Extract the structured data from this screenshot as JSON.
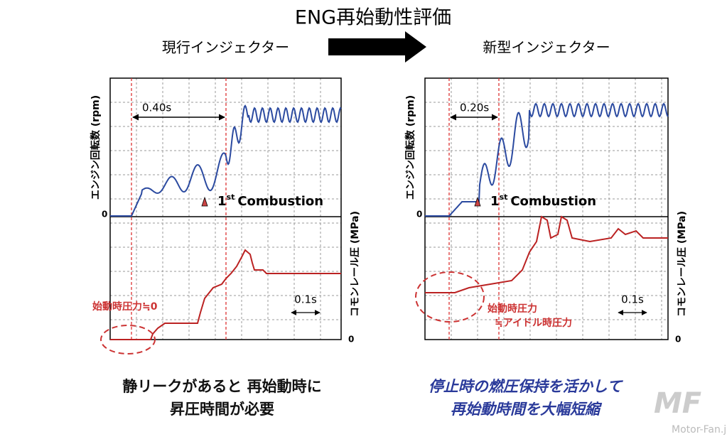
{
  "title": "ENG再始動性評価",
  "panels": [
    {
      "heading": "現行インジェクター",
      "rpm_axis_label": "エンジン回転数 (rpm)",
      "rpm_zero": "0",
      "pressure_axis_label": "コモンレール圧 (MPa)",
      "pressure_zero": "0",
      "delay": "0.40s",
      "combustion": {
        "number": "1",
        "suffix": "st",
        "word": "Combustion"
      },
      "scale": "0.1s",
      "note": [
        "始動時圧力≒0"
      ],
      "caption": [
        "静リークがあると 再始動時に",
        "昇圧時間が必要"
      ]
    },
    {
      "heading": "新型インジェクター",
      "rpm_axis_label": "エンジン回転数 (rpm)",
      "rpm_zero": "0",
      "pressure_axis_label": "コモンレール圧 (MPa)",
      "pressure_zero": "0",
      "delay": "0.20s",
      "combustion": {
        "number": "1",
        "suffix": "st",
        "word": "Combustion"
      },
      "scale": "0.1s",
      "note": [
        "始動時圧力",
        "≒アイドル時圧力"
      ],
      "caption": [
        "停止時の燃圧保持を活かして",
        "再始動時間を大幅短縮"
      ]
    }
  ],
  "watermark": "Motor-Fan.jp"
}
